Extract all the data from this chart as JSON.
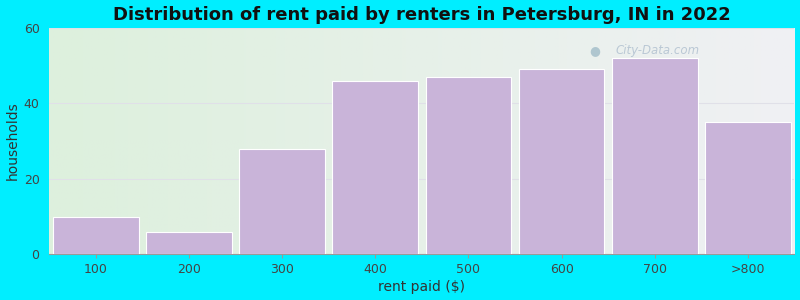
{
  "categories": [
    "100",
    "200",
    "300",
    "400",
    "500",
    "600",
    "700",
    ">800"
  ],
  "values": [
    10,
    6,
    28,
    46,
    47,
    49,
    52,
    35
  ],
  "bar_color": "#c9b4d9",
  "bar_edge_color": "#ffffff",
  "title": "Distribution of rent paid by renters in Petersburg, IN in 2022",
  "xlabel": "rent paid ($)",
  "ylabel": "households",
  "ylim": [
    0,
    60
  ],
  "yticks": [
    0,
    20,
    40,
    60
  ],
  "background_outer": "#00eeff",
  "background_grad_left": "#ddf0dd",
  "background_grad_right": "#f0f0f4",
  "title_fontsize": 13,
  "axis_label_fontsize": 10,
  "tick_fontsize": 9,
  "watermark_text": "City-Data.com",
  "watermark_color": "#aabbcc",
  "grid_color": "#e0e0e8"
}
